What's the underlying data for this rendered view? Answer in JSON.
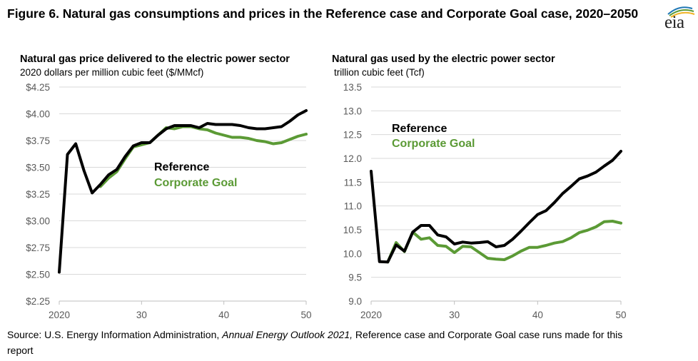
{
  "figure": {
    "title": "Figure 6. Natural gas consumptions and prices in the Reference case and Corporate Goal case, 2020–2050",
    "logo_text": "eia",
    "source_prefix": "Source: U.S. Energy Information Administration, ",
    "source_italic": "Annual Energy Outlook 2021,",
    "source_suffix": " Reference case and Corporate Goal case runs made for this report"
  },
  "colors": {
    "reference": "#000000",
    "corporate": "#5b9a35",
    "grid": "#d9d9d9",
    "axis": "#bfbfbf",
    "tick": "#595959"
  },
  "chart_data": [
    {
      "type": "line",
      "title": "Natural gas price delivered to the electric power sector",
      "subtitle": "2020 dollars per million cubic feet ($/MMcf)",
      "ylim": [
        2.25,
        4.25
      ],
      "yticks": [
        "$2.25",
        "$2.50",
        "$2.75",
        "$3.00",
        "$3.25",
        "$3.50",
        "$3.75",
        "$4.00",
        "$4.25"
      ],
      "ytick_values": [
        2.25,
        2.5,
        2.75,
        3.0,
        3.25,
        3.5,
        3.75,
        4.0,
        4.25
      ],
      "xlim": [
        2020,
        2050
      ],
      "xticks": [
        "2020",
        "30",
        "40",
        "50"
      ],
      "xtick_values": [
        2020,
        2030,
        2040,
        2050
      ],
      "grid": true,
      "series": [
        {
          "name": "Reference",
          "color": "#000000",
          "x": [
            2020,
            2021,
            2022,
            2023,
            2024,
            2025,
            2026,
            2027,
            2028,
            2029,
            2030,
            2031,
            2032,
            2033,
            2034,
            2035,
            2036,
            2037,
            2038,
            2039,
            2040,
            2041,
            2042,
            2043,
            2044,
            2045,
            2046,
            2047,
            2048,
            2049,
            2050
          ],
          "values": [
            2.52,
            3.62,
            3.72,
            3.47,
            3.26,
            3.34,
            3.43,
            3.48,
            3.6,
            3.7,
            3.73,
            3.73,
            3.8,
            3.86,
            3.89,
            3.89,
            3.89,
            3.87,
            3.91,
            3.9,
            3.9,
            3.9,
            3.89,
            3.87,
            3.86,
            3.86,
            3.87,
            3.88,
            3.93,
            3.99,
            4.03
          ]
        },
        {
          "name": "Corporate Goal",
          "color": "#5b9a35",
          "x": [
            2025,
            2026,
            2027,
            2028,
            2029,
            2030,
            2031,
            2032,
            2033,
            2034,
            2035,
            2036,
            2037,
            2038,
            2039,
            2040,
            2041,
            2042,
            2043,
            2044,
            2045,
            2046,
            2047,
            2048,
            2049,
            2050
          ],
          "values": [
            3.32,
            3.4,
            3.46,
            3.58,
            3.69,
            3.71,
            3.73,
            3.8,
            3.87,
            3.86,
            3.88,
            3.88,
            3.86,
            3.85,
            3.82,
            3.8,
            3.78,
            3.78,
            3.77,
            3.75,
            3.74,
            3.72,
            3.73,
            3.76,
            3.79,
            3.81
          ]
        }
      ]
    },
    {
      "type": "line",
      "title": "Natural gas used by the electric power sector",
      "subtitle": "trillion cubic feet (Tcf)",
      "ylim": [
        9.0,
        13.5
      ],
      "yticks": [
        "9.0",
        "9.5",
        "10.0",
        "10.5",
        "11.0",
        "11.5",
        "12.0",
        "12.5",
        "13.0",
        "13.5"
      ],
      "ytick_values": [
        9.0,
        9.5,
        10.0,
        10.5,
        11.0,
        11.5,
        12.0,
        12.5,
        13.0,
        13.5
      ],
      "xlim": [
        2020,
        2050
      ],
      "xticks": [
        "2020",
        "30",
        "40",
        "50"
      ],
      "xtick_values": [
        2020,
        2030,
        2040,
        2050
      ],
      "grid": true,
      "series": [
        {
          "name": "Reference",
          "color": "#000000",
          "x": [
            2020,
            2021,
            2022,
            2023,
            2024,
            2025,
            2026,
            2027,
            2028,
            2029,
            2030,
            2031,
            2032,
            2033,
            2034,
            2035,
            2036,
            2037,
            2038,
            2039,
            2040,
            2041,
            2042,
            2043,
            2044,
            2045,
            2046,
            2047,
            2048,
            2049,
            2050
          ],
          "values": [
            11.73,
            9.83,
            9.82,
            10.18,
            10.05,
            10.45,
            10.59,
            10.59,
            10.39,
            10.35,
            10.2,
            10.24,
            10.22,
            10.23,
            10.25,
            10.14,
            10.17,
            10.3,
            10.47,
            10.65,
            10.82,
            10.9,
            11.07,
            11.26,
            11.41,
            11.57,
            11.63,
            11.71,
            11.84,
            11.96,
            12.15
          ]
        },
        {
          "name": "Corporate Goal",
          "color": "#5b9a35",
          "x": [
            2022,
            2023,
            2024,
            2025,
            2026,
            2027,
            2028,
            2029,
            2030,
            2031,
            2032,
            2033,
            2034,
            2035,
            2036,
            2037,
            2038,
            2039,
            2040,
            2041,
            2042,
            2043,
            2044,
            2045,
            2046,
            2047,
            2048,
            2049,
            2050
          ],
          "values": [
            9.82,
            10.23,
            10.04,
            10.45,
            10.3,
            10.33,
            10.17,
            10.15,
            10.02,
            10.15,
            10.14,
            10.02,
            9.9,
            9.88,
            9.87,
            9.95,
            10.05,
            10.13,
            10.13,
            10.17,
            10.22,
            10.25,
            10.33,
            10.44,
            10.49,
            10.56,
            10.67,
            10.68,
            10.64
          ]
        }
      ]
    }
  ]
}
